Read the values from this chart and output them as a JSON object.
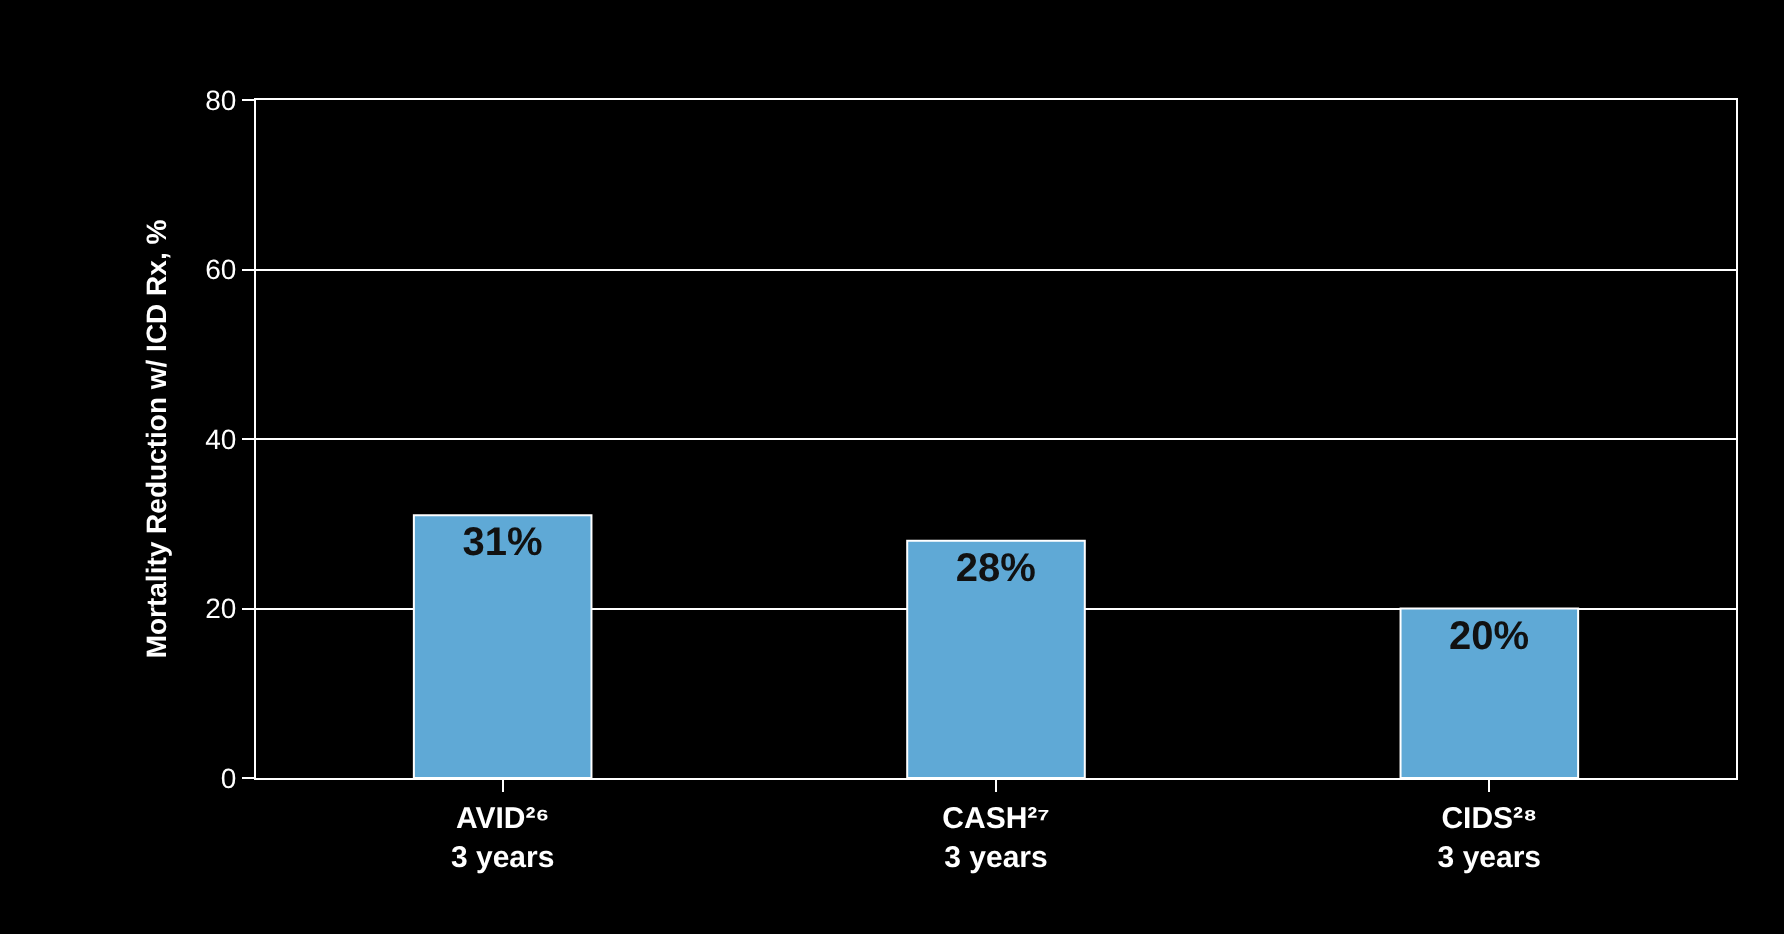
{
  "chart_data": {
    "type": "bar",
    "ylabel": "Mortality Reduction w/ ICD Rx, %",
    "categories": [
      "AVID²⁶\n3 years",
      "CASH²⁷\n3 years",
      "CIDS²⁸\n3 years"
    ],
    "values": [
      31,
      28,
      20
    ],
    "value_labels": [
      "31%",
      "28%",
      "20%"
    ],
    "color": "#5fa9d6",
    "ylim": [
      0,
      80
    ],
    "yticks": [
      0,
      20,
      40,
      60,
      80
    ],
    "grid": "y"
  }
}
